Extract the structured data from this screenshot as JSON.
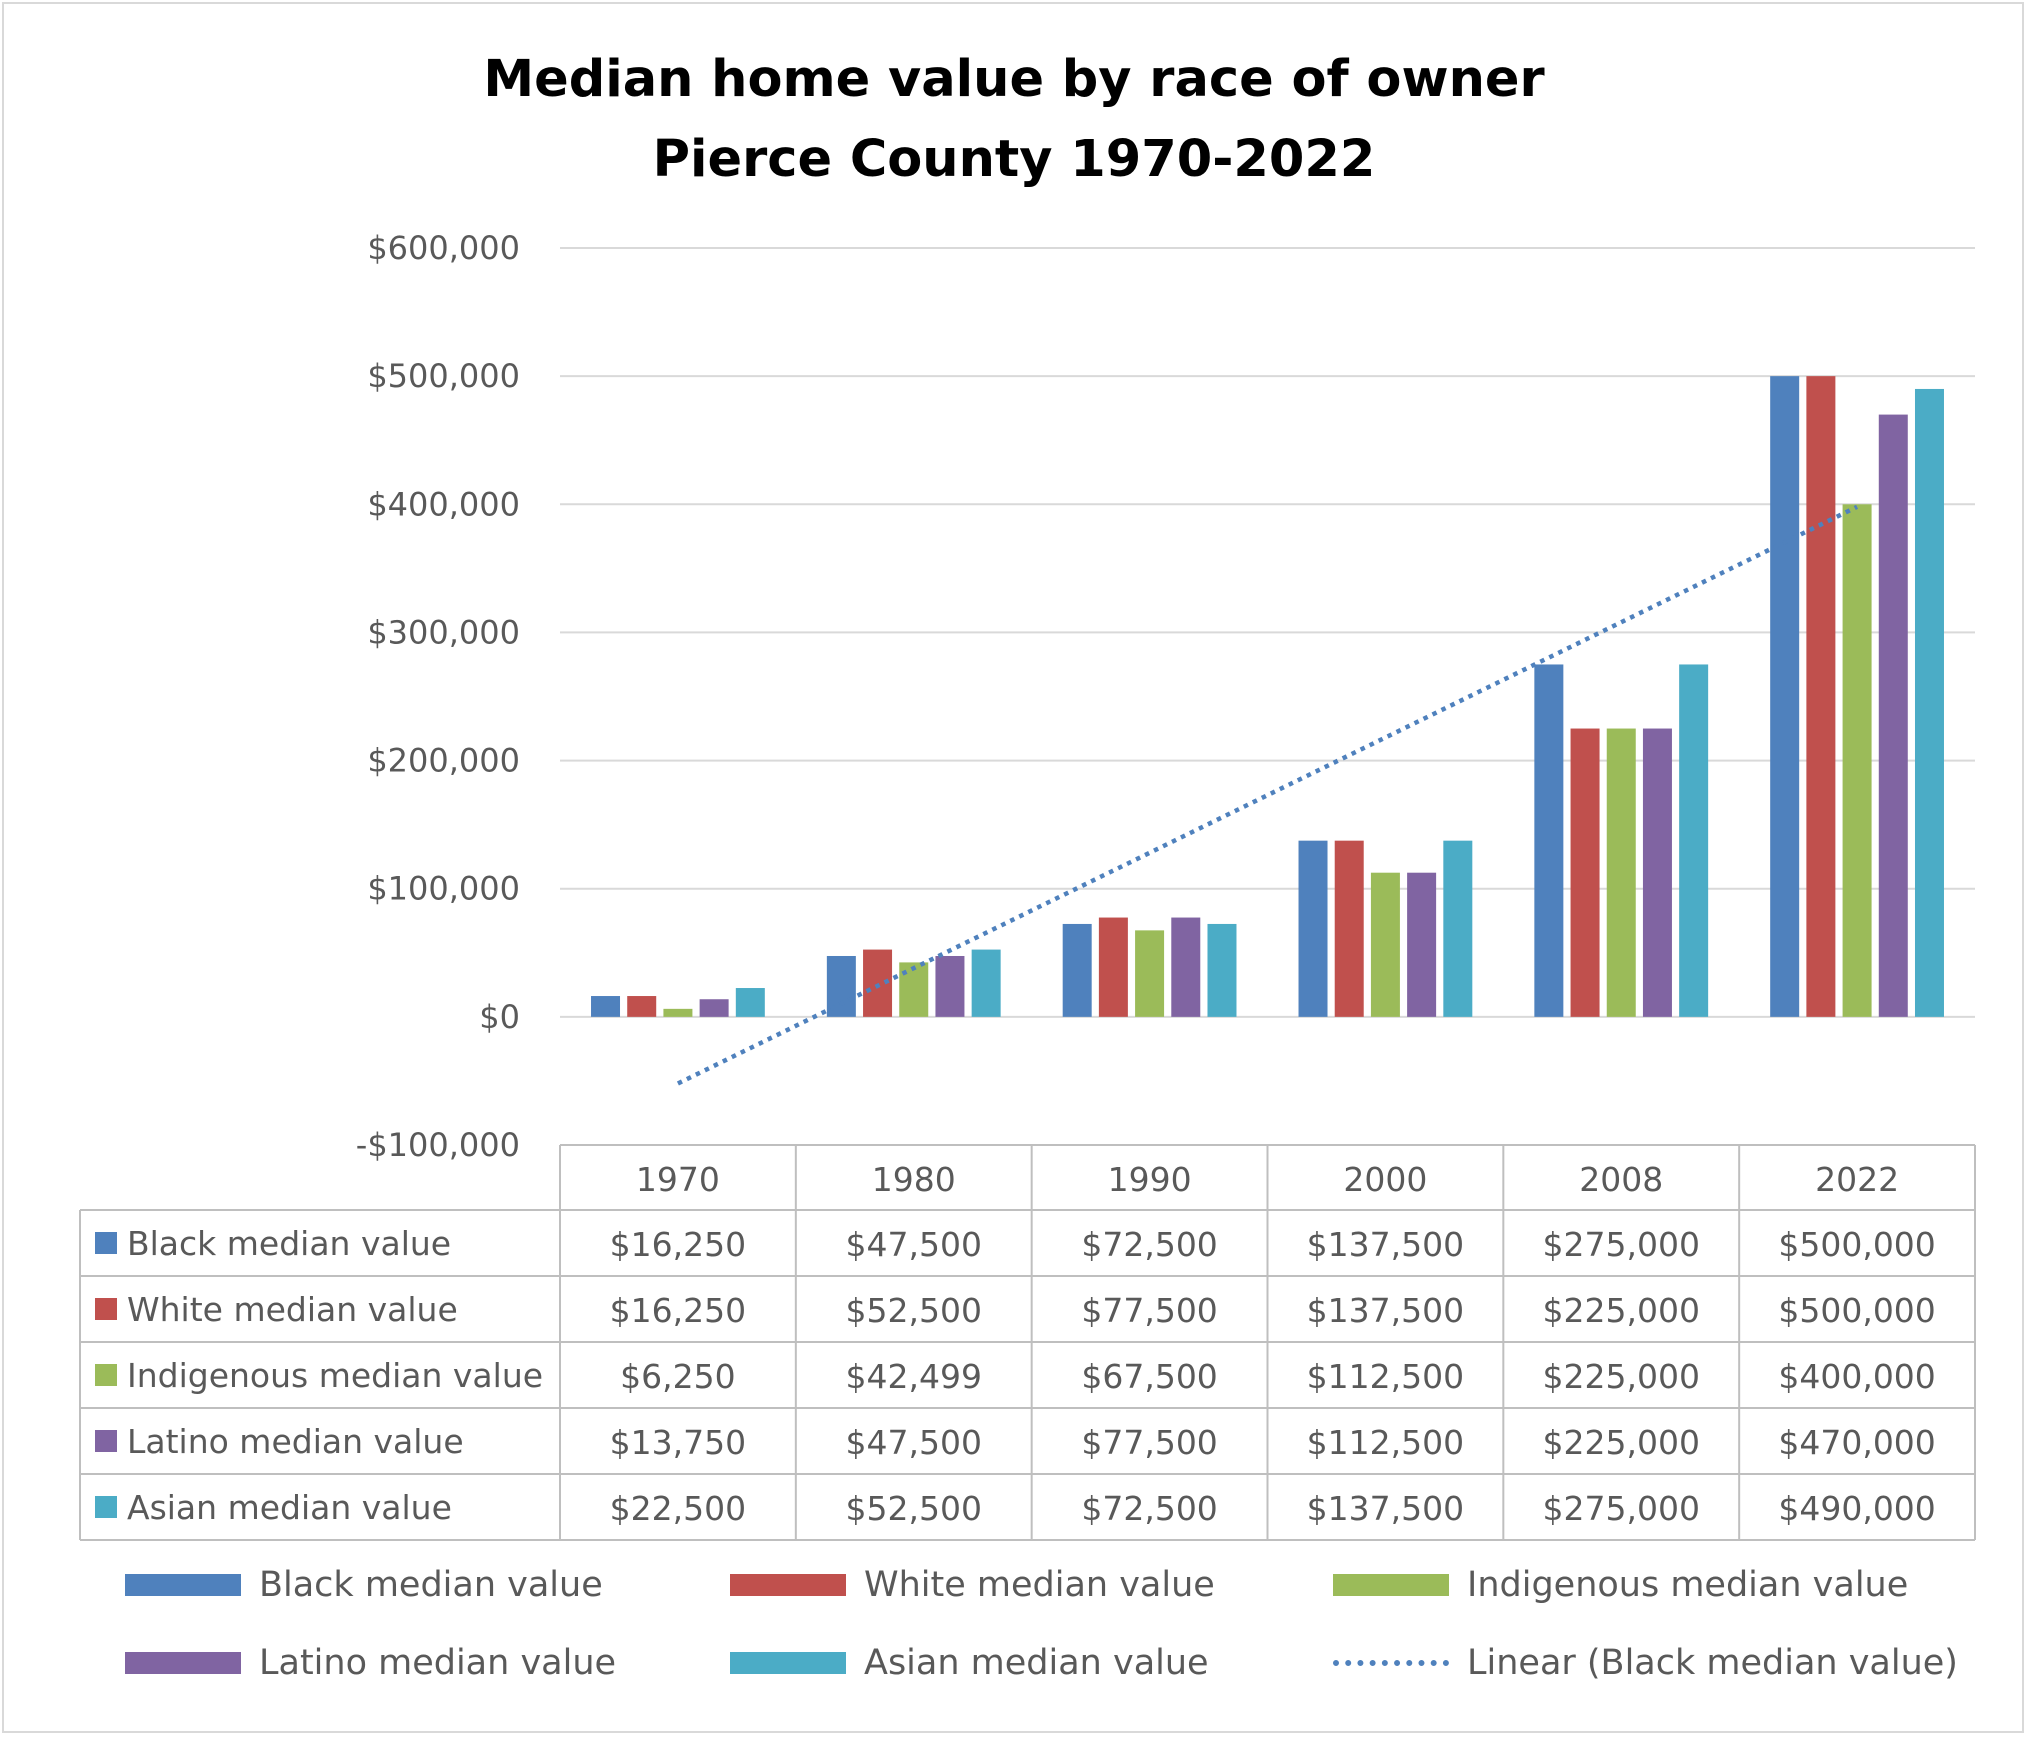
{
  "chart_data": {
    "type": "bar",
    "title_lines": [
      "Median home value by race of owner",
      "Pierce County 1970-2022"
    ],
    "categories": [
      "1970",
      "1980",
      "1990",
      "2000",
      "2008",
      "2022"
    ],
    "ylim": [
      -100000,
      600000
    ],
    "yticks": [
      600000,
      500000,
      400000,
      300000,
      200000,
      100000,
      0,
      -100000
    ],
    "ytick_labels": [
      "$600,000",
      "$500,000",
      "$400,000",
      "$300,000",
      "$200,000",
      "$100,000",
      "$0",
      "-$100,000"
    ],
    "grid": true,
    "legend_position": "bottom",
    "series": [
      {
        "name": "Black median value",
        "color": "#4f81bd",
        "values": [
          16250,
          47500,
          72500,
          137500,
          275000,
          500000
        ],
        "labels": [
          "$16,250",
          "$47,500",
          "$72,500",
          "$137,500",
          "$275,000",
          "$500,000"
        ]
      },
      {
        "name": "White median value",
        "color": "#c0504d",
        "values": [
          16250,
          52500,
          77500,
          137500,
          225000,
          500000
        ],
        "labels": [
          "$16,250",
          "$52,500",
          "$77,500",
          "$137,500",
          "$225,000",
          "$500,000"
        ]
      },
      {
        "name": "Indigenous median value",
        "color": "#9bbb59",
        "values": [
          6250,
          42499,
          67500,
          112500,
          225000,
          400000
        ],
        "labels": [
          "$6,250",
          "$42,499",
          "$67,500",
          "$112,500",
          "$225,000",
          "$400,000"
        ]
      },
      {
        "name": "Latino median value",
        "color": "#8064a2",
        "values": [
          13750,
          47500,
          77500,
          112500,
          225000,
          470000
        ],
        "labels": [
          "$13,750",
          "$47,500",
          "$77,500",
          "$112,500",
          "$225,000",
          "$470,000"
        ]
      },
      {
        "name": "Asian median value",
        "color": "#4bacc6",
        "values": [
          22500,
          52500,
          72500,
          137500,
          275000,
          490000
        ],
        "labels": [
          "$22,500",
          "$52,500",
          "$72,500",
          "$137,500",
          "$275,000",
          "$490,000"
        ]
      }
    ],
    "trendline": {
      "name": "Linear (Black median value)",
      "type": "linear",
      "of_series": "Black median value",
      "color": "#4f81bd",
      "start_value": -52000,
      "end_value": 398000
    }
  }
}
